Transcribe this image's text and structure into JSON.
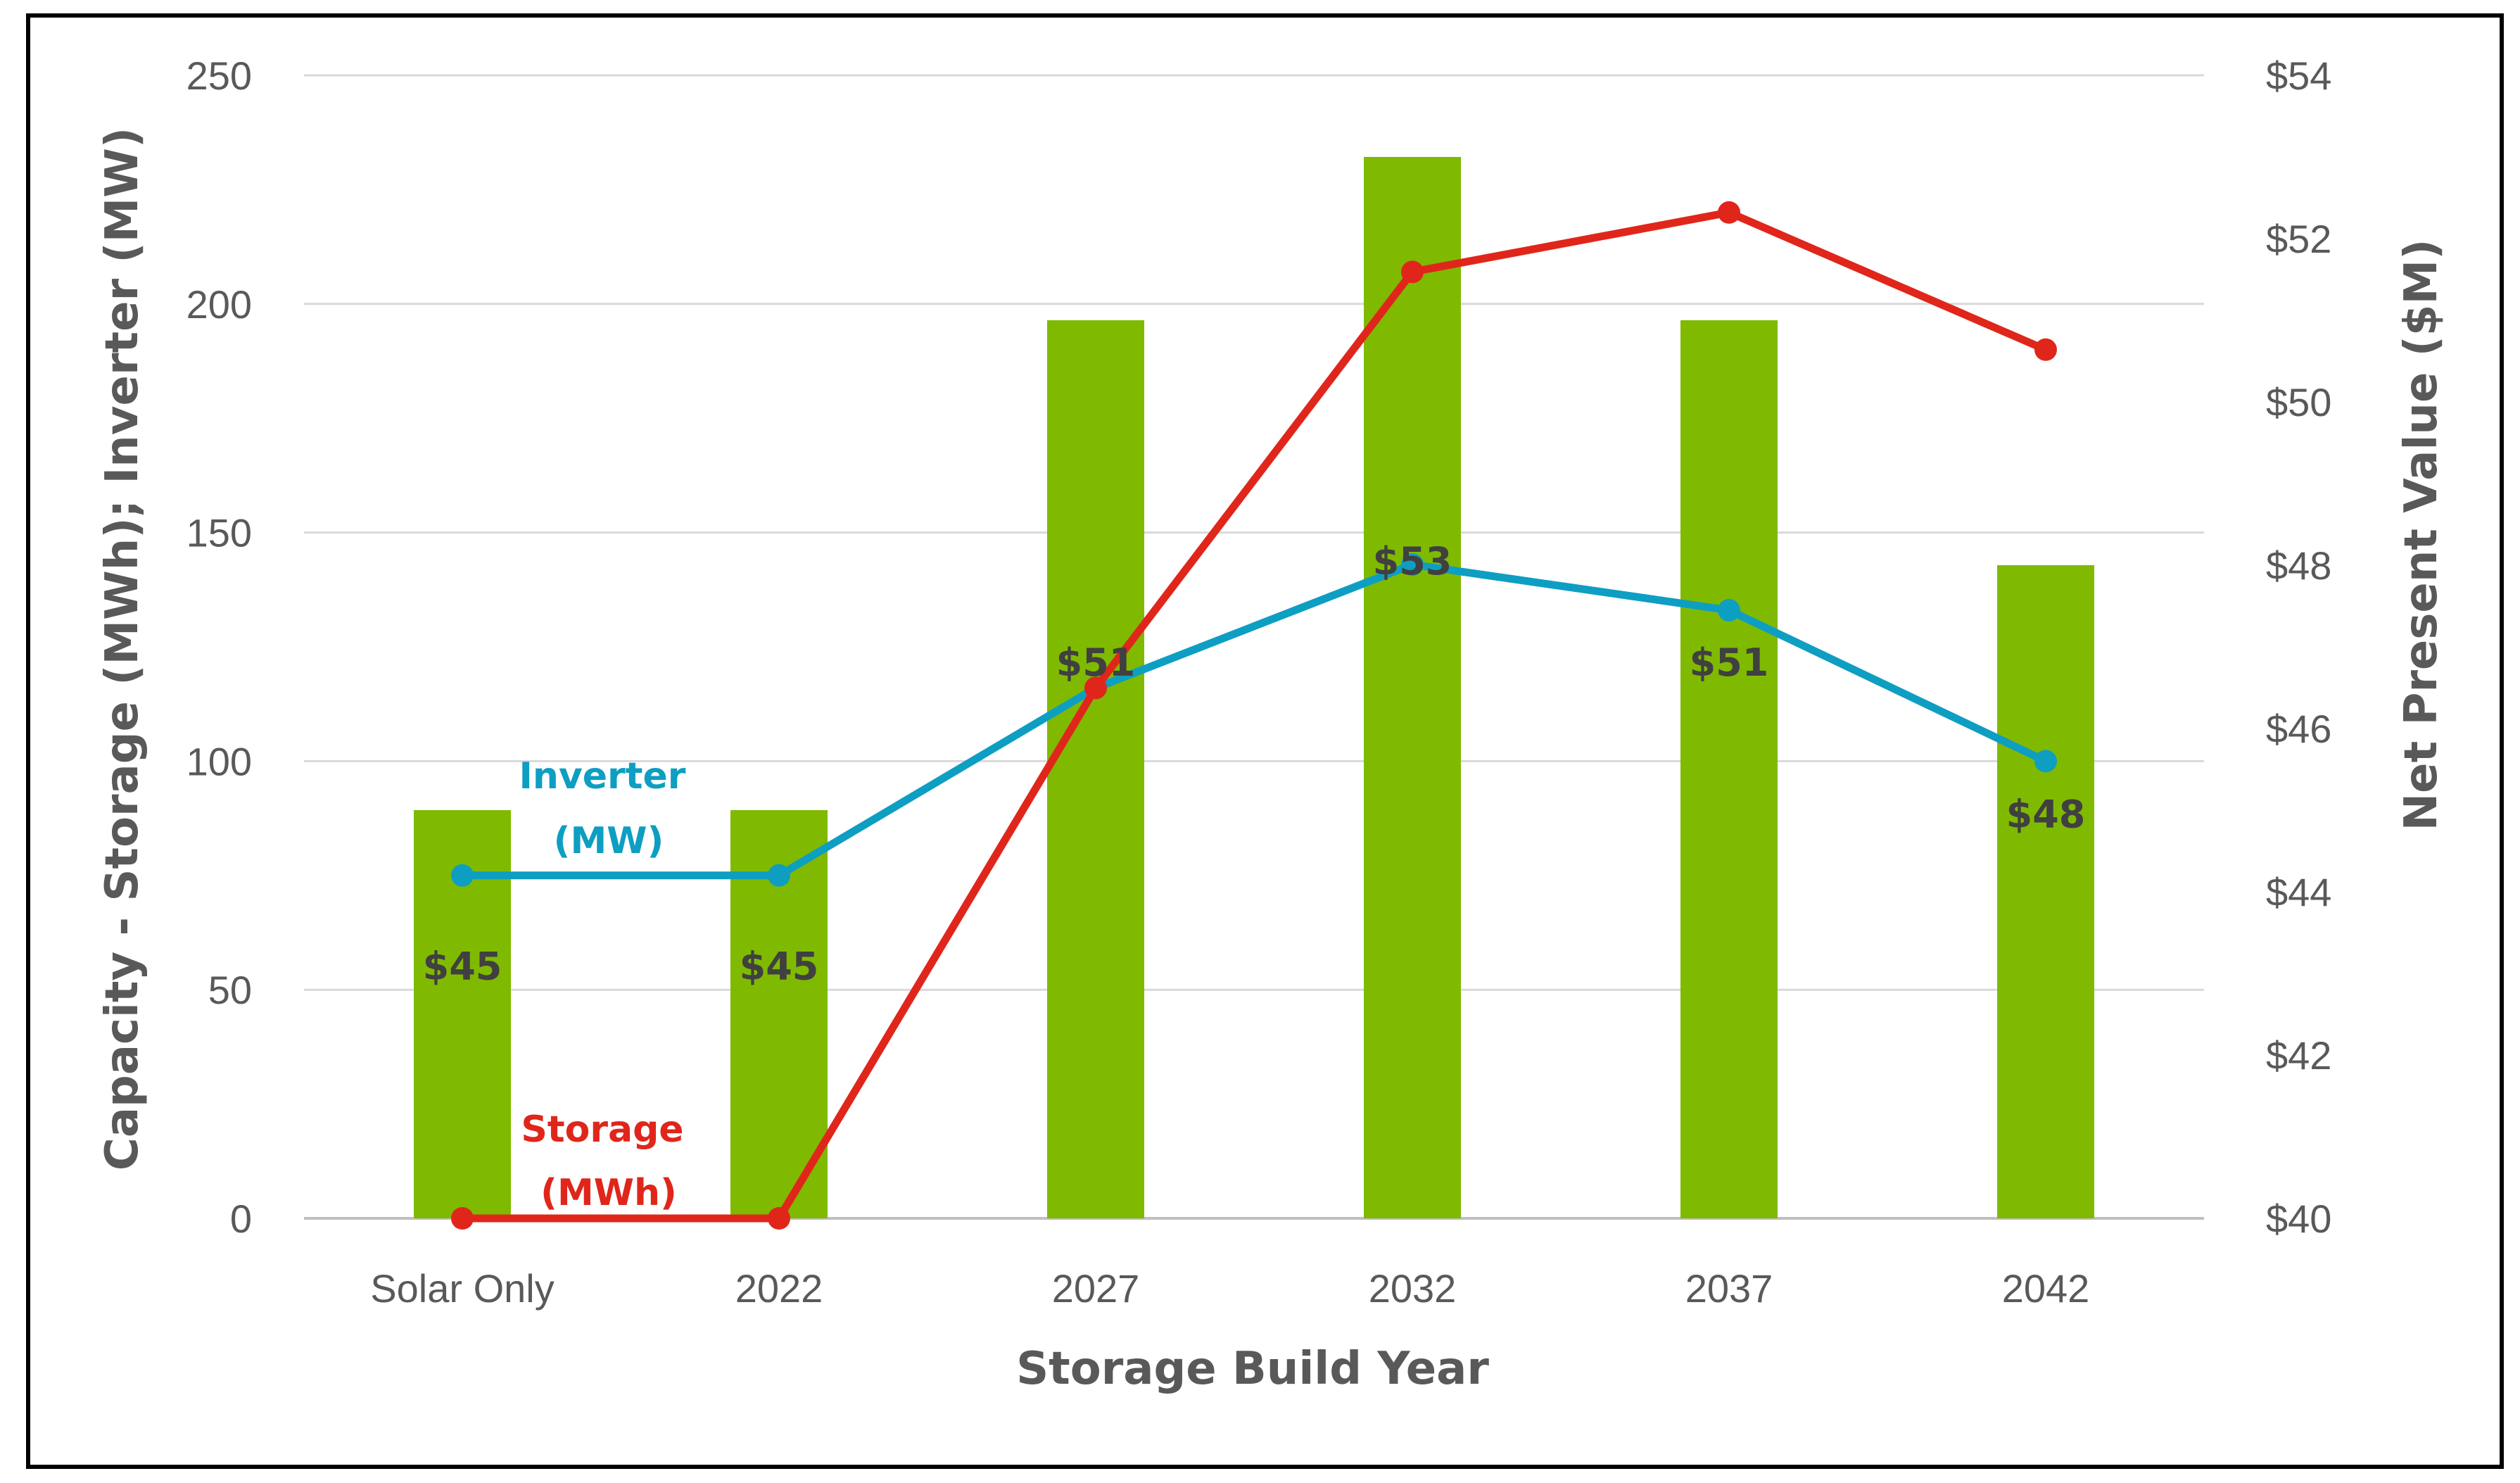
{
  "chart_data": {
    "type": "bar+line",
    "categories": [
      "Solar Only",
      "2022",
      "2027",
      "2032",
      "2037",
      "2042"
    ],
    "xlabel": "Storage Build Year",
    "ylabel_left": "Capacity - Storage (MWh); Inverter (MW)",
    "ylabel_right": "Net Present Value ($M)",
    "ylim_left": [
      0,
      250
    ],
    "left_ticks": [
      "0",
      "50",
      "100",
      "150",
      "200",
      "250"
    ],
    "left_tick_values": [
      0,
      50,
      100,
      150,
      200,
      250
    ],
    "ylim_right": [
      40,
      54
    ],
    "right_ticks": [
      "$40",
      "$42",
      "$44",
      "$46",
      "$48",
      "$50",
      "$52",
      "$54"
    ],
    "right_tick_values": [
      40,
      42,
      44,
      46,
      48,
      50,
      52,
      54
    ],
    "grid": true,
    "bars": {
      "name": "Net Present Value ($M)",
      "axis": "right",
      "color": "#7FBA00",
      "values": [
        45,
        45,
        51,
        53,
        51,
        48
      ],
      "labels": [
        "$45",
        "$45",
        "$51",
        "$53",
        "$51",
        "$48"
      ]
    },
    "series": [
      {
        "name": "Inverter (MW)",
        "label_line1": "Inverter",
        "label_line2": "(MW)",
        "axis": "left",
        "color": "#0E9EC2",
        "values": [
          75,
          75,
          116,
          143,
          133,
          100
        ]
      },
      {
        "name": "Storage (MWh)",
        "label_line1": "Storage",
        "label_line2": "(MWh)",
        "axis": "left",
        "color": "#E0261B",
        "values": [
          0,
          0,
          116,
          207,
          220,
          190
        ]
      }
    ]
  }
}
